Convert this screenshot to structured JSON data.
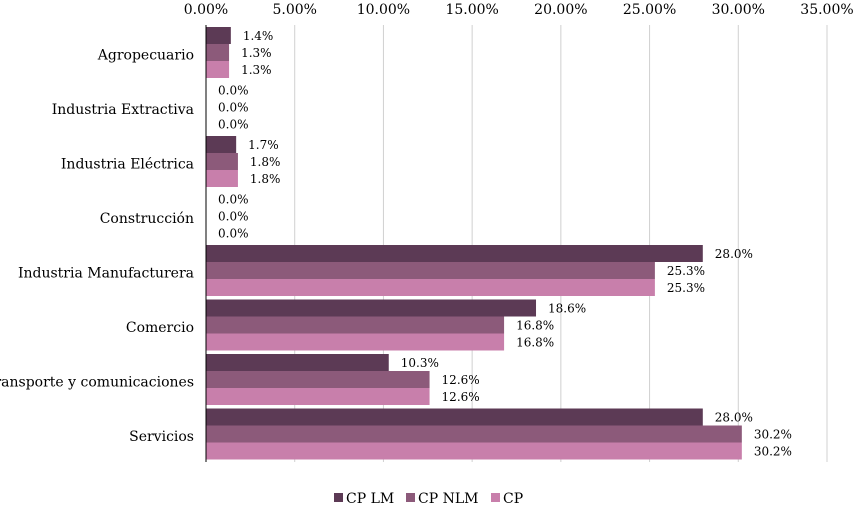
{
  "chart_data": {
    "type": "bar",
    "orientation": "horizontal",
    "categories": [
      "Agropecuario",
      "Industria Extractiva",
      "Industria Eléctrica",
      "Construcción",
      "Industria Manufacturera",
      "Comercio",
      "Transporte y comunicaciones",
      "Servicios"
    ],
    "series": [
      {
        "name": "CP LM",
        "color": "#5c3a55",
        "values": [
          1.4,
          0.0,
          1.7,
          0.0,
          28.0,
          18.6,
          10.3,
          28.0
        ]
      },
      {
        "name": "CP NLM",
        "color": "#8c5a7a",
        "values": [
          1.3,
          0.0,
          1.8,
          0.0,
          25.3,
          16.8,
          12.6,
          30.2
        ]
      },
      {
        "name": "CP",
        "color": "#c87fab",
        "values": [
          1.3,
          0.0,
          1.8,
          0.0,
          25.3,
          16.8,
          12.6,
          30.2
        ]
      }
    ],
    "xlim": [
      0,
      35
    ],
    "xticks": [
      "0.00%",
      "5.00%",
      "10.00%",
      "15.00%",
      "20.00%",
      "25.00%",
      "30.00%",
      "35.00%"
    ],
    "axis_position": "top",
    "grid": true,
    "legend": "bottom",
    "data_label_format": "0.0%"
  }
}
